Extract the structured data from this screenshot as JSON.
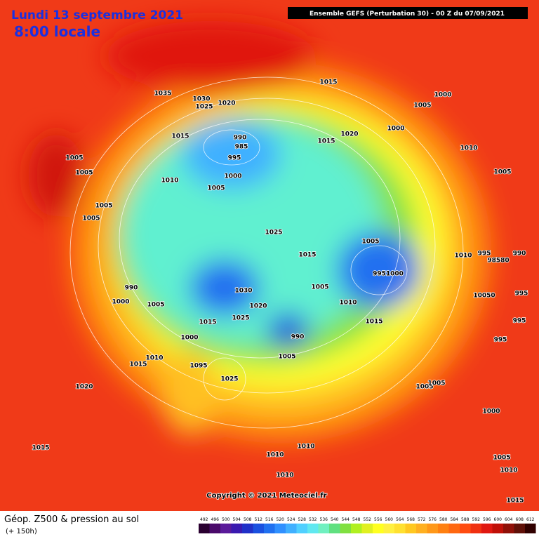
{
  "header": {
    "date": "Lundi 13 septembre 2021",
    "time": "8:00 locale",
    "model": "Ensemble GEFS  (Perturbation 30)  - 00 Z du 07/09/2021"
  },
  "footer": {
    "title": "Géop. Z500 & pression au sol",
    "lead": "(+ 150h)",
    "copyright": "Copyright © 2021 Meteociel.fr"
  },
  "pressure_labels": [
    "1035",
    "1030",
    "1025",
    "1020",
    "1015",
    "1000",
    "1005",
    "1000",
    "1020",
    "1015",
    "1010",
    "1005",
    "990",
    "985",
    "995",
    "1015",
    "1005",
    "1005",
    "1010",
    "1000",
    "1005",
    "1005",
    "1005",
    "1025",
    "1005",
    "1015",
    "1010",
    "995",
    "990",
    "98580",
    "9951000",
    "1005",
    "1030",
    "990",
    "1000",
    "1005",
    "10050",
    "995",
    "1010",
    "1020",
    "1025",
    "1015",
    "1015",
    "995",
    "990",
    "995",
    "1000",
    "1010",
    "1015",
    "1005",
    "1095",
    "1025",
    "1020",
    "1005",
    "1005",
    "1000",
    "1015",
    "1010",
    "1010",
    "1005",
    "1010",
    "1010",
    "1015"
  ],
  "legend": {
    "ticks": [
      492,
      496,
      500,
      504,
      508,
      512,
      516,
      520,
      524,
      528,
      532,
      536,
      540,
      544,
      548,
      552,
      556,
      560,
      564,
      568,
      572,
      576,
      580,
      584,
      588,
      592,
      596,
      600,
      604,
      608,
      612
    ],
    "colors": [
      "#2a0030",
      "#4a0a6a",
      "#5a1a9a",
      "#3a1ab0",
      "#2030c8",
      "#1a50e0",
      "#2070f0",
      "#3090ff",
      "#40b0ff",
      "#50d0ff",
      "#60e8f0",
      "#70f0c0",
      "#60e080",
      "#80e040",
      "#b0f020",
      "#e0f020",
      "#ffff20",
      "#fff040",
      "#ffe030",
      "#ffc820",
      "#ffb020",
      "#ff9818",
      "#ff8010",
      "#ff6810",
      "#ff4c10",
      "#f03010",
      "#e01810",
      "#c01008",
      "#901008",
      "#601008",
      "#300000"
    ]
  }
}
